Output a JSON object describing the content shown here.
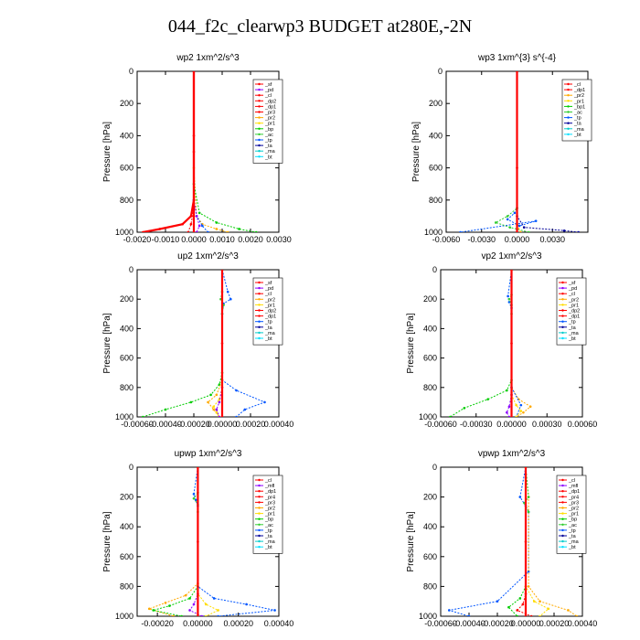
{
  "page": {
    "title": "044_f2c_clearwp3  BUDGET at280E,-2N"
  },
  "colors": {
    "sf": "#ff0000",
    "pd": "#8b00ff",
    "cl": "#ff0000",
    "dp2": "#ff0000",
    "dp1": "#ff0000",
    "pr3": "#ff0000",
    "pr2": "#ffaa00",
    "pr1": "#ffdd00",
    "bp": "#00cc00",
    "ac": "#33cc33",
    "tp": "#0055ff",
    "ta": "#000099",
    "ma": "#00cccc",
    "bt": "#00e0ff",
    "mfl": "#8b00ff",
    "pr4": "#ff0000",
    "bp1": "#00cc00"
  },
  "chart_data": [
    {
      "type": "line",
      "title": "wp2   1xm^2/s^3",
      "ylabel": "Pressure [hPa]",
      "xlim": [
        -0.002,
        0.003
      ],
      "ylim": [
        1000,
        0
      ],
      "xticks": [
        -0.002,
        -0.001,
        0.0,
        0.001,
        0.002,
        0.003
      ],
      "xtick_labels": [
        "-0.0020",
        "-0.0010",
        "0.0000",
        "0.0010",
        "0.0020",
        "0.0030"
      ],
      "yticks": [
        0,
        200,
        400,
        600,
        800,
        1000
      ],
      "ytick_labels": [
        "0",
        "200",
        "400",
        "600",
        "800",
        "1000"
      ],
      "legend": [
        "_sf",
        "_pd",
        "_cl",
        "_dp2",
        "_dp1",
        "_pr3",
        "_pr2",
        "_pr1",
        "_bp",
        "_ac",
        "_tp",
        "_ta",
        "_ma",
        "_bt"
      ],
      "legend_colors": [
        "sf",
        "pd",
        "cl",
        "dp2",
        "dp1",
        "pr3",
        "pr2",
        "pr1",
        "bp",
        "ac",
        "tp",
        "ta",
        "ma",
        "bt"
      ],
      "legend_position": "top-right",
      "series": [
        {
          "name": "_cl",
          "color": "cl",
          "x": [
            0,
            0,
            0,
            -0.0001,
            -0.0004,
            -0.0012,
            -0.0018
          ],
          "y": [
            0,
            400,
            800,
            900,
            950,
            980,
            1000
          ]
        },
        {
          "name": "_pr2",
          "color": "pr2",
          "x": [
            0,
            0,
            0.0001,
            0.0003,
            0.0008,
            0.0012
          ],
          "y": [
            0,
            600,
            900,
            950,
            980,
            1000
          ]
        },
        {
          "name": "_bp",
          "color": "bp",
          "x": [
            0,
            0,
            0.0002,
            0.0008,
            0.0016,
            0.0022
          ],
          "y": [
            0,
            700,
            880,
            940,
            980,
            1000
          ]
        },
        {
          "name": "_tp",
          "color": "tp",
          "x": [
            0,
            0,
            0.0001,
            0.0003,
            0.0005
          ],
          "y": [
            0,
            800,
            900,
            960,
            1000
          ]
        },
        {
          "name": "_pd",
          "color": "pd",
          "x": [
            0,
            0,
            0.0001,
            0.0002,
            0.0001
          ],
          "y": [
            0,
            800,
            900,
            960,
            1000
          ]
        },
        {
          "name": "_dp1",
          "color": "dp1",
          "x": [
            0,
            0,
            -0.0001,
            -0.0002
          ],
          "y": [
            0,
            850,
            950,
            1000
          ]
        },
        {
          "name": "_sf",
          "color": "sf",
          "x": [
            0,
            0,
            0,
            0
          ],
          "y": [
            0,
            500,
            900,
            1000
          ]
        }
      ]
    },
    {
      "type": "line",
      "title": "wp3   1xm^{3} s^{-4}",
      "ylabel": "Pressure [hPa]",
      "xlim": [
        -0.006,
        0.006
      ],
      "ylim": [
        1000,
        0
      ],
      "xticks": [
        -0.006,
        -0.003,
        0.0,
        0.003
      ],
      "xtick_labels": [
        "-0.0060",
        "-0.0030",
        "0.0000",
        "0.0030"
      ],
      "yticks": [
        0,
        200,
        400,
        600,
        800,
        1000
      ],
      "ytick_labels": [
        "0",
        "200",
        "400",
        "600",
        "800",
        "1000"
      ],
      "legend": [
        "_cl",
        "_dp1",
        "_pr2",
        "_pr1",
        "_bp1",
        "_ac",
        "_tp",
        "_ta",
        "_ma",
        "_bt"
      ],
      "legend_colors": [
        "cl",
        "dp1",
        "pr2",
        "pr1",
        "bp1",
        "ac",
        "tp",
        "ta",
        "ma",
        "bt"
      ],
      "legend_position": "top-right",
      "series": [
        {
          "name": "_tp",
          "color": "tp",
          "x": [
            0,
            0,
            -0.0002,
            -0.0008,
            0.0002,
            0.0016,
            -0.0048
          ],
          "y": [
            0,
            850,
            880,
            920,
            960,
            930,
            1000
          ]
        },
        {
          "name": "_ac",
          "color": "ac",
          "x": [
            0,
            0,
            -0.0008,
            -0.0018,
            -0.0006,
            0.001
          ],
          "y": [
            0,
            850,
            900,
            940,
            970,
            1000
          ]
        },
        {
          "name": "_ta",
          "color": "ta",
          "x": [
            0,
            0,
            0.0006,
            0.004,
            0.0052
          ],
          "y": [
            0,
            900,
            970,
            990,
            1000
          ]
        },
        {
          "name": "_pr2",
          "color": "pr2",
          "x": [
            0,
            0,
            0.0003
          ],
          "y": [
            0,
            950,
            1000
          ]
        },
        {
          "name": "_cl",
          "color": "cl",
          "x": [
            0,
            0,
            0
          ],
          "y": [
            0,
            600,
            1000
          ]
        }
      ]
    },
    {
      "type": "line",
      "title": "up2   1xm^2/s^3",
      "ylabel": "Pressure [hPa]",
      "xlim": [
        -0.0006,
        0.0004
      ],
      "ylim": [
        1000,
        0
      ],
      "xticks": [
        -0.0006,
        -0.0004,
        -0.0002,
        0.0,
        0.0002,
        0.0004
      ],
      "xtick_labels": [
        "-0.00060",
        "-0.00040",
        "-0.00020",
        "0.00000",
        "0.00020",
        "0.00040"
      ],
      "yticks": [
        0,
        200,
        400,
        600,
        800,
        1000
      ],
      "ytick_labels": [
        "0",
        "200",
        "400",
        "600",
        "800",
        "1000"
      ],
      "legend": [
        "_sf",
        "_pd",
        "_cl",
        "_pr2",
        "_pr1",
        "_dp2",
        "_dp1",
        "_tp",
        "_ta",
        "_ma",
        "_bt"
      ],
      "legend_colors": [
        "sf",
        "pd",
        "cl",
        "pr2",
        "pr1",
        "dp2",
        "dp1",
        "tp",
        "ta",
        "ma",
        "bt"
      ],
      "legend_position": "top-right",
      "series": [
        {
          "name": "_bp",
          "color": "bp",
          "x": [
            0,
            0,
            -2e-05,
            -8e-05,
            -0.00022,
            -0.0004,
            -0.00056
          ],
          "y": [
            0,
            700,
            780,
            850,
            900,
            950,
            1000
          ]
        },
        {
          "name": "_tp",
          "color": "tp",
          "x": [
            0,
            4e-05,
            6e-05,
            1e-05,
            0,
            0,
            0.0001,
            0.0003,
            0.00016,
            0.0001
          ],
          "y": [
            0,
            150,
            200,
            230,
            300,
            750,
            820,
            900,
            950,
            1000
          ]
        },
        {
          "name": "_pr2",
          "color": "pr2",
          "x": [
            0,
            0,
            -4e-05,
            -0.0001,
            -6e-05,
            -2e-05
          ],
          "y": [
            0,
            750,
            850,
            900,
            950,
            1000
          ]
        },
        {
          "name": "_pr1",
          "color": "pr1",
          "x": [
            0,
            0,
            -2e-05,
            -6e-05,
            -4e-05,
            -2e-05
          ],
          "y": [
            0,
            800,
            880,
            930,
            970,
            1000
          ]
        },
        {
          "name": "_pd",
          "color": "pd",
          "x": [
            0,
            0,
            -2e-05,
            -4e-05,
            -2e-05
          ],
          "y": [
            0,
            800,
            900,
            950,
            1000
          ]
        },
        {
          "name": "_ac",
          "color": "ac",
          "x": [
            0,
            0,
            -1e-05,
            1e-05,
            0
          ],
          "y": [
            0,
            150,
            200,
            240,
            300
          ]
        },
        {
          "name": "_sf",
          "color": "sf",
          "x": [
            0,
            0,
            0
          ],
          "y": [
            0,
            500,
            1000
          ]
        }
      ]
    },
    {
      "type": "line",
      "title": "vp2   1xm^2/s^3",
      "ylabel": "Pressure [hPa]",
      "xlim": [
        -0.0006,
        0.0006
      ],
      "ylim": [
        1000,
        0
      ],
      "xticks": [
        -0.0006,
        -0.0003,
        0.0,
        0.0003,
        0.0006
      ],
      "xtick_labels": [
        "-0.00060",
        "-0.00030",
        "0.00000",
        "0.00030",
        "0.00060"
      ],
      "yticks": [
        0,
        200,
        400,
        600,
        800,
        1000
      ],
      "ytick_labels": [
        "0",
        "200",
        "400",
        "600",
        "800",
        "1000"
      ],
      "legend": [
        "_sf",
        "_pd",
        "_cl",
        "_pr2",
        "_pr1",
        "_dp2",
        "_dp1",
        "_tp",
        "_ta",
        "_ma",
        "_bt"
      ],
      "legend_colors": [
        "sf",
        "pd",
        "cl",
        "pr2",
        "pr1",
        "dp2",
        "dp1",
        "tp",
        "ta",
        "ma",
        "bt"
      ],
      "legend_position": "top-right",
      "series": [
        {
          "name": "_bp",
          "color": "bp",
          "x": [
            0,
            0,
            -4e-05,
            -0.0002,
            -0.0004,
            -0.00052
          ],
          "y": [
            0,
            750,
            820,
            880,
            940,
            1000
          ]
        },
        {
          "name": "_pr2",
          "color": "pr2",
          "x": [
            0,
            0,
            6e-05,
            0.00016,
            0.0001,
            4e-05
          ],
          "y": [
            0,
            800,
            880,
            930,
            970,
            1000
          ]
        },
        {
          "name": "_tp",
          "color": "tp",
          "x": [
            0,
            -3e-05,
            -2e-05,
            0,
            0,
            8e-05,
            4e-05
          ],
          "y": [
            0,
            180,
            220,
            260,
            800,
            920,
            1000
          ]
        },
        {
          "name": "_pr1",
          "color": "pr1",
          "x": [
            0,
            0,
            4e-05,
            8e-05,
            4e-05
          ],
          "y": [
            0,
            850,
            920,
            960,
            1000
          ]
        },
        {
          "name": "_pd",
          "color": "pd",
          "x": [
            0,
            0,
            -2e-05,
            -4e-05,
            -2e-05
          ],
          "y": [
            0,
            850,
            930,
            970,
            1000
          ]
        },
        {
          "name": "_ac",
          "color": "ac",
          "x": [
            0,
            0,
            -2e-05,
            0,
            0
          ],
          "y": [
            0,
            170,
            200,
            240,
            300
          ]
        },
        {
          "name": "_sf",
          "color": "sf",
          "x": [
            0,
            0,
            0
          ],
          "y": [
            0,
            500,
            1000
          ]
        }
      ]
    },
    {
      "type": "line",
      "title": "upwp   1xm^2/s^3",
      "ylabel": "Pressure [hPa]",
      "xlim": [
        -0.0003,
        0.0004
      ],
      "ylim": [
        1000,
        0
      ],
      "xticks": [
        -0.0002,
        0.0,
        0.0002,
        0.0004
      ],
      "xtick_labels": [
        "-0.00020",
        "0.00000",
        "0.00020",
        "0.00040"
      ],
      "yticks": [
        0,
        200,
        400,
        600,
        800,
        1000
      ],
      "ytick_labels": [
        "0",
        "200",
        "400",
        "600",
        "800",
        "1000"
      ],
      "legend": [
        "_cl",
        "_mfl",
        "_dp1",
        "_pr4",
        "_pr3",
        "_pr2",
        "_pr1",
        "_bp",
        "_ac",
        "_tp",
        "_ta",
        "_ma",
        "_bt"
      ],
      "legend_colors": [
        "cl",
        "mfl",
        "dp1",
        "pr4",
        "pr3",
        "pr2",
        "pr1",
        "bp",
        "ac",
        "tp",
        "ta",
        "ma",
        "bt"
      ],
      "legend_position": "top-right",
      "series": [
        {
          "name": "_tp",
          "color": "tp",
          "x": [
            0,
            -2e-05,
            -1e-05,
            0,
            0,
            8e-05,
            0.00024,
            0.00038,
            0.0001
          ],
          "y": [
            0,
            180,
            220,
            260,
            800,
            880,
            920,
            960,
            1000
          ]
        },
        {
          "name": "_pr2",
          "color": "pr2",
          "x": [
            0,
            0,
            -6e-05,
            -0.00016,
            -0.00024,
            -0.00012
          ],
          "y": [
            0,
            780,
            860,
            910,
            950,
            1000
          ]
        },
        {
          "name": "_bp",
          "color": "bp",
          "x": [
            0,
            0,
            -4e-05,
            -0.00014,
            -0.00022,
            -8e-05
          ],
          "y": [
            0,
            800,
            880,
            930,
            960,
            1000
          ]
        },
        {
          "name": "_pr1",
          "color": "pr1",
          "x": [
            0,
            0,
            4e-05,
            0.0001,
            4e-05
          ],
          "y": [
            0,
            850,
            920,
            960,
            1000
          ]
        },
        {
          "name": "_pd",
          "color": "mfl",
          "x": [
            0,
            0,
            -2e-05,
            -4e-05,
            2e-05
          ],
          "y": [
            0,
            850,
            920,
            960,
            1000
          ]
        },
        {
          "name": "_ac",
          "color": "ac",
          "x": [
            0,
            0,
            -2e-05,
            0,
            0
          ],
          "y": [
            0,
            170,
            210,
            250,
            300
          ]
        },
        {
          "name": "_cl",
          "color": "cl",
          "x": [
            0,
            0,
            0
          ],
          "y": [
            0,
            500,
            1000
          ]
        }
      ]
    },
    {
      "type": "line",
      "title": "vpwp   1xm^2/s^3",
      "ylabel": "Pressure [hPa]",
      "xlim": [
        -0.0006,
        0.0004
      ],
      "ylim": [
        1000,
        0
      ],
      "xticks": [
        -0.0006,
        -0.0004,
        -0.0002,
        0.0,
        0.0002,
        0.0004
      ],
      "xtick_labels": [
        "-0.00060",
        "-0.00040",
        "-0.00020",
        "0.00000",
        "0.00020",
        "0.00040"
      ],
      "yticks": [
        0,
        200,
        400,
        600,
        800,
        1000
      ],
      "ytick_labels": [
        "0",
        "200",
        "400",
        "600",
        "800",
        "1000"
      ],
      "legend": [
        "_cl",
        "_mfl",
        "_dp1",
        "_pr4",
        "_pr3",
        "_pr2",
        "_pr1",
        "_bp",
        "_ac",
        "_tp",
        "_ta",
        "_ma",
        "_bt"
      ],
      "legend_colors": [
        "cl",
        "mfl",
        "dp1",
        "pr4",
        "pr3",
        "pr2",
        "pr1",
        "bp",
        "ac",
        "tp",
        "ta",
        "ma",
        "bt"
      ],
      "legend_position": "top-right",
      "series": [
        {
          "name": "_tp",
          "color": "tp",
          "x": [
            0,
            -4e-05,
            0,
            2e-05,
            2e-05,
            -0.0002,
            -0.00054,
            -0.0004
          ],
          "y": [
            0,
            200,
            260,
            300,
            700,
            900,
            960,
            1000
          ]
        },
        {
          "name": "_pr2",
          "color": "pr2",
          "x": [
            0,
            2e-05,
            2e-05,
            0.0001,
            0.0003,
            0.00036
          ],
          "y": [
            0,
            200,
            800,
            900,
            960,
            1000
          ]
        },
        {
          "name": "_bp",
          "color": "bp",
          "x": [
            0,
            0,
            -4e-05,
            -0.00012,
            -6e-05
          ],
          "y": [
            0,
            800,
            880,
            940,
            1000
          ]
        },
        {
          "name": "_pr1",
          "color": "pr1",
          "x": [
            0,
            0,
            6e-05,
            0.00016,
            0.0001
          ],
          "y": [
            0,
            800,
            900,
            950,
            1000
          ]
        },
        {
          "name": "_dp1",
          "color": "dp1",
          "x": [
            0,
            0,
            -2e-05,
            -6e-05,
            4e-05
          ],
          "y": [
            0,
            850,
            920,
            960,
            1000
          ]
        },
        {
          "name": "_ac",
          "color": "ac",
          "x": [
            0,
            2e-05,
            -1e-05,
            2e-05
          ],
          "y": [
            0,
            200,
            240,
            300
          ]
        },
        {
          "name": "_cl",
          "color": "cl",
          "x": [
            0,
            0,
            0
          ],
          "y": [
            0,
            500,
            1000
          ]
        }
      ]
    }
  ]
}
